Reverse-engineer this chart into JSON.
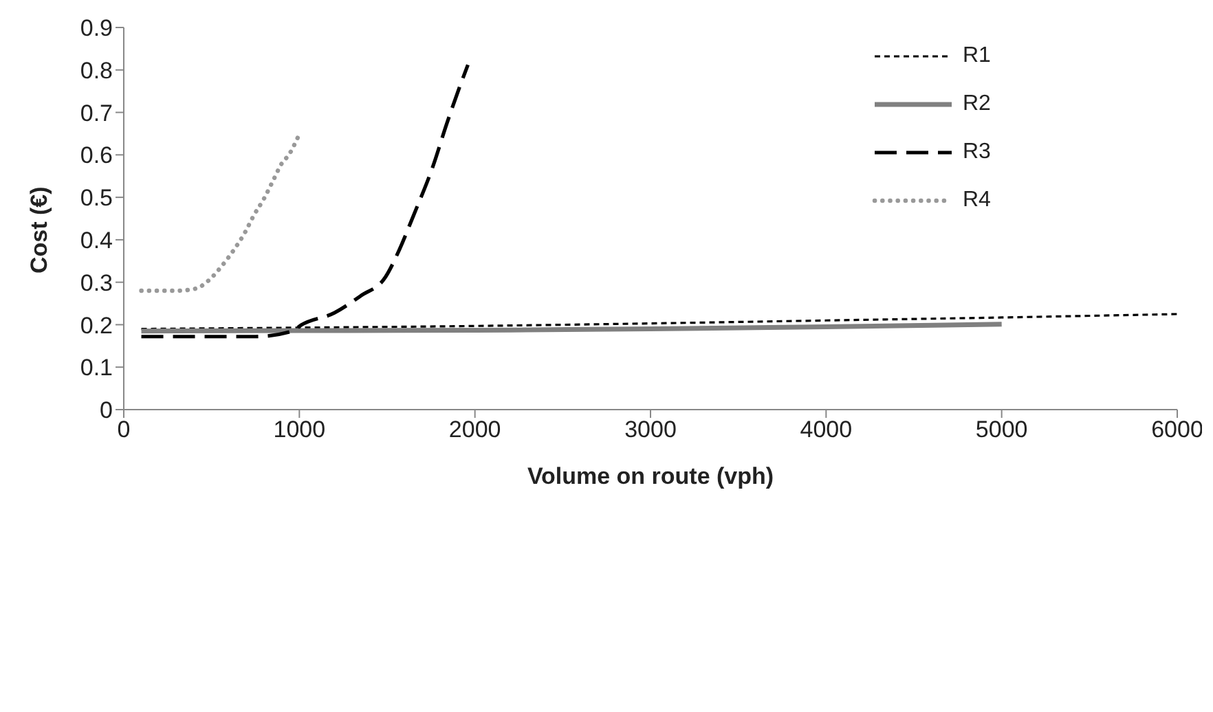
{
  "chart_data": {
    "type": "line",
    "xlabel": "Volume on route (vph)",
    "ylabel": "Cost (€)",
    "xlim": [
      0,
      6000
    ],
    "xticks": [
      0,
      1000,
      2000,
      3000,
      4000,
      5000,
      6000
    ],
    "ylim": [
      0,
      0.9
    ],
    "yticks": [
      0,
      0.1,
      0.2,
      0.3,
      0.4,
      0.5,
      0.6,
      0.7,
      0.8,
      0.9
    ],
    "grid": false,
    "legend": "top right",
    "marker": "none",
    "series": [
      {
        "name": "R1",
        "color": "#000000",
        "line_style": "dashed",
        "x": [
          100,
          1000,
          2000,
          3000,
          4000,
          5000,
          6000
        ],
        "values": [
          0.19,
          0.193,
          0.197,
          0.203,
          0.21,
          0.217,
          0.225
        ]
      },
      {
        "name": "R2",
        "color": "#808080",
        "line_style": "solid",
        "x": [
          100,
          1000,
          2000,
          3000,
          4000,
          5000
        ],
        "values": [
          0.185,
          0.186,
          0.187,
          0.19,
          0.195,
          0.201
        ]
      },
      {
        "name": "R3",
        "color": "#000000",
        "line_style": "longdash",
        "x": [
          100,
          750,
          960,
          1010,
          1200,
          1350,
          1490,
          1570,
          1650,
          1760,
          1840,
          1920,
          1960
        ],
        "values": [
          0.172,
          0.172,
          0.185,
          0.199,
          0.228,
          0.268,
          0.312,
          0.377,
          0.457,
          0.572,
          0.674,
          0.768,
          0.812
        ]
      },
      {
        "name": "R4",
        "color": "#999999",
        "line_style": "dotted",
        "x": [
          100,
          200,
          300,
          410,
          480,
          560,
          630,
          690,
          740,
          800,
          850,
          900,
          940,
          990
        ],
        "values": [
          0.28,
          0.28,
          0.28,
          0.285,
          0.303,
          0.339,
          0.378,
          0.417,
          0.457,
          0.498,
          0.539,
          0.58,
          0.6,
          0.64
        ]
      }
    ]
  }
}
